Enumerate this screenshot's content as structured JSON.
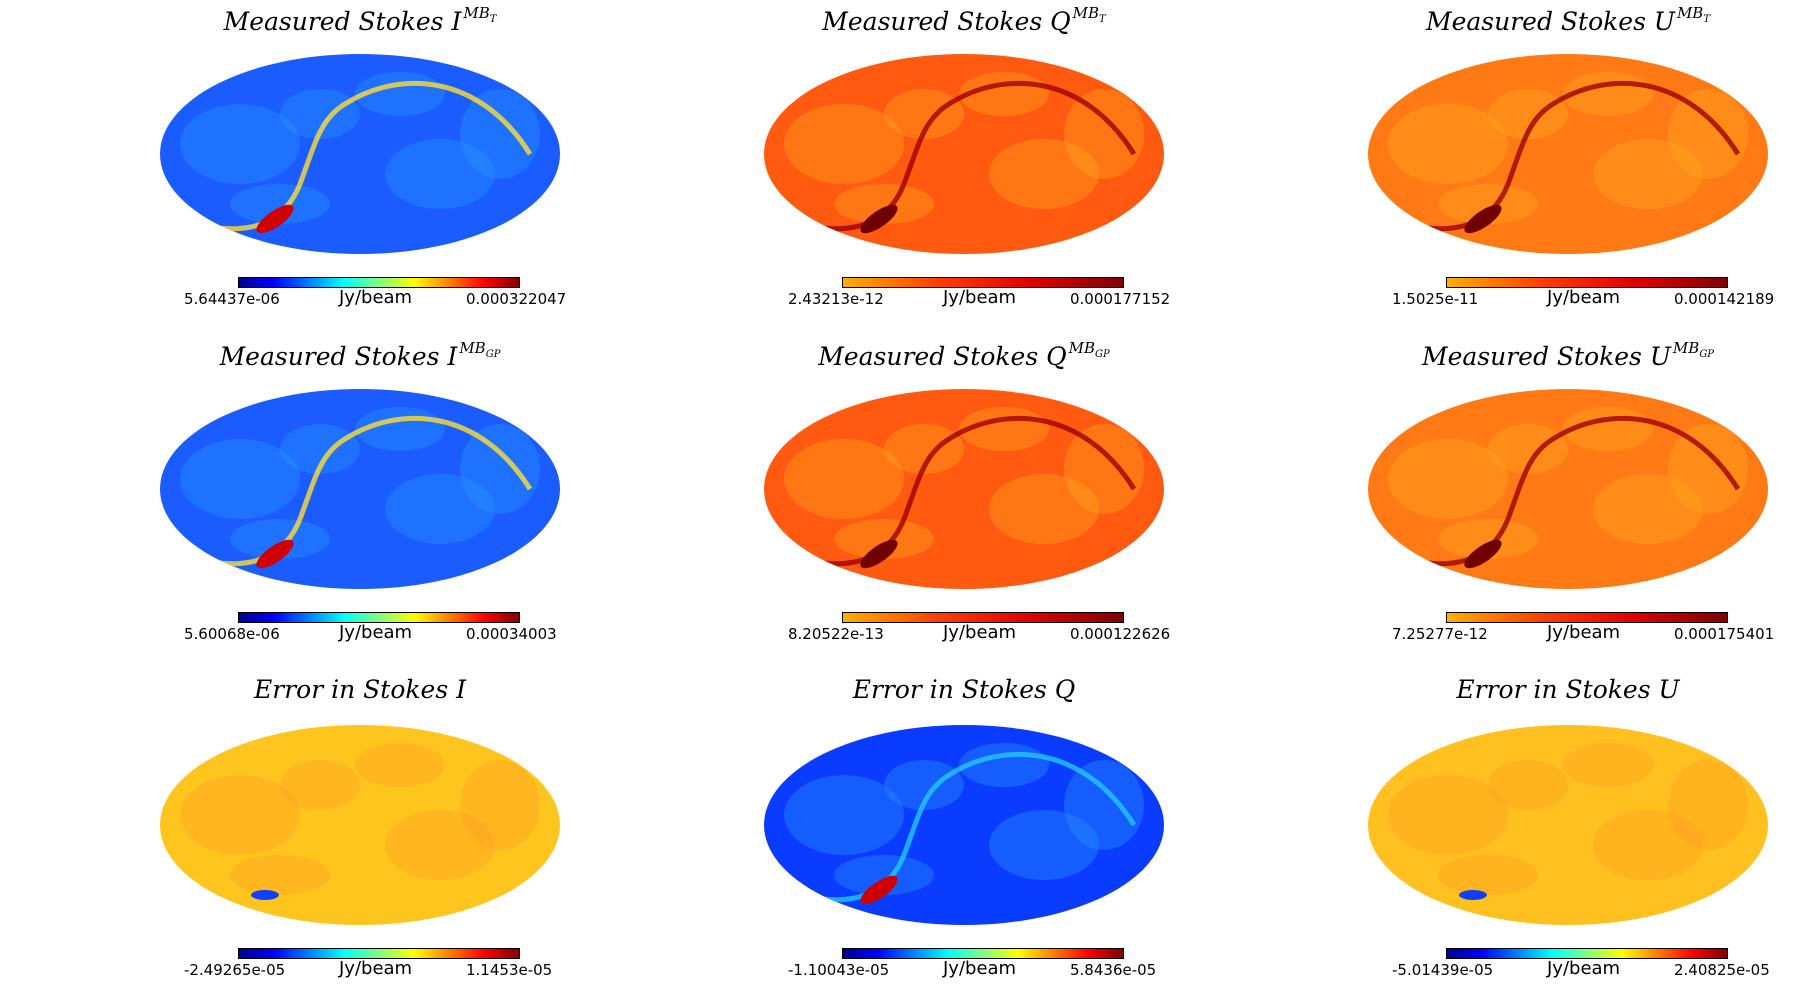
{
  "unit": "Jy/beam",
  "colormap_stops": [
    "#00008f",
    "#0000ff",
    "#0080ff",
    "#00ffff",
    "#80ff80",
    "#ffff00",
    "#ff8000",
    "#ff0000",
    "#800000"
  ],
  "panels": [
    {
      "title": "Measured Stokes I",
      "sup": "MB",
      "sub": "T",
      "cbar_min": "5.64437e-06",
      "cbar_max": "0.000322047",
      "cmap": "full",
      "bg": "#1a5cff",
      "plane": true,
      "plane_color": "#ffdd33"
    },
    {
      "title": "Measured Stokes Q",
      "sup": "MB",
      "sub": "T",
      "cbar_min": "2.43213e-12",
      "cbar_max": "0.000177152",
      "cmap": "red",
      "bg": "#ff5a10",
      "plane": true,
      "plane_color": "#a00000"
    },
    {
      "title": "Measured Stokes U",
      "sup": "MB",
      "sub": "T",
      "cbar_min": "1.5025e-11",
      "cbar_max": "0.000142189",
      "cmap": "red",
      "bg": "#ff7a15",
      "plane": true,
      "plane_color": "#a00000"
    },
    {
      "title": "Measured Stokes I",
      "sup": "MB",
      "sub": "GP",
      "cbar_min": "5.60068e-06",
      "cbar_max": "0.00034003",
      "cmap": "full",
      "bg": "#1a5cff",
      "plane": true,
      "plane_color": "#ffdd33"
    },
    {
      "title": "Measured Stokes Q",
      "sup": "MB",
      "sub": "GP",
      "cbar_min": "8.20522e-13",
      "cbar_max": "0.000122626",
      "cmap": "red",
      "bg": "#ff5a10",
      "plane": true,
      "plane_color": "#a00000"
    },
    {
      "title": "Measured Stokes U",
      "sup": "MB",
      "sub": "GP",
      "cbar_min": "7.25277e-12",
      "cbar_max": "0.000175401",
      "cmap": "red",
      "bg": "#ff7a15",
      "plane": true,
      "plane_color": "#a00000"
    },
    {
      "title": "Error in Stokes I",
      "sup": "",
      "sub": "",
      "cbar_min": "-2.49265e-05",
      "cbar_max": "1.1453e-05",
      "cmap": "full",
      "bg": "#ffc51f",
      "plane": false,
      "plane_color": "#1040ff"
    },
    {
      "title": "Error in Stokes Q",
      "sup": "",
      "sub": "",
      "cbar_min": "-1.10043e-05",
      "cbar_max": "5.8436e-05",
      "cmap": "full",
      "bg": "#0a3cff",
      "plane": true,
      "plane_color": "#20c8ff"
    },
    {
      "title": "Error in Stokes U",
      "sup": "",
      "sub": "",
      "cbar_min": "-5.01439e-05",
      "cbar_max": "2.40825e-05",
      "cmap": "full",
      "bg": "#ffc020",
      "plane": false,
      "plane_color": "#1040ff"
    }
  ]
}
